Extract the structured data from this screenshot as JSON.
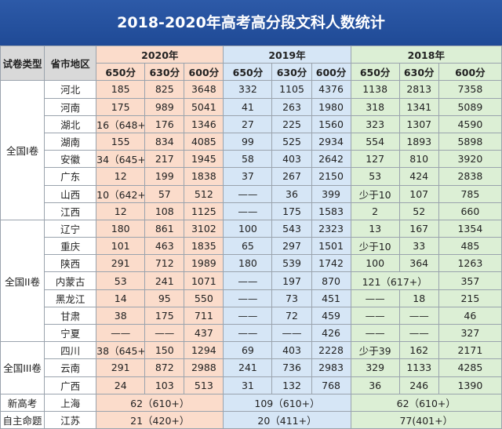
{
  "title": "2018-2020年高考高分段文科人数统计",
  "headers": {
    "paper_type": "试卷类型",
    "region": "省市地区",
    "years": [
      "2020年",
      "2019年",
      "2018年"
    ],
    "scores": [
      "650分",
      "630分",
      "600分"
    ]
  },
  "colors": {
    "title_bg": "#1f4a96",
    "y2020": "#fbdccb",
    "y2019": "#d6e6f6",
    "y2018": "#dcefd5"
  },
  "groups": [
    {
      "name": "全国I卷",
      "rows": [
        {
          "region": "河北",
          "y2020": [
            "185",
            "825",
            "3648"
          ],
          "y2019": [
            "332",
            "1105",
            "4376"
          ],
          "y2018": [
            "1138",
            "2813",
            "7358"
          ]
        },
        {
          "region": "河南",
          "y2020": [
            "175",
            "989",
            "5041"
          ],
          "y2019": [
            "41",
            "263",
            "1980"
          ],
          "y2018": [
            "318",
            "1341",
            "5089"
          ]
        },
        {
          "region": "湖北",
          "y2020": [
            "16（648+）",
            "176",
            "1346"
          ],
          "y2019": [
            "27",
            "225",
            "1560"
          ],
          "y2018": [
            "323",
            "1307",
            "4590"
          ]
        },
        {
          "region": "湖南",
          "y2020": [
            "155",
            "834",
            "4085"
          ],
          "y2019": [
            "99",
            "525",
            "2934"
          ],
          "y2018": [
            "554",
            "1893",
            "5898"
          ]
        },
        {
          "region": "安徽",
          "y2020": [
            "34（645+）",
            "217",
            "1945"
          ],
          "y2019": [
            "58",
            "403",
            "2642"
          ],
          "y2018": [
            "127",
            "810",
            "3920"
          ]
        },
        {
          "region": "广东",
          "y2020": [
            "12",
            "199",
            "1838"
          ],
          "y2019": [
            "37",
            "267",
            "2150"
          ],
          "y2018": [
            "53",
            "424",
            "2838"
          ]
        },
        {
          "region": "山西",
          "y2020": [
            "10（642+）",
            "57",
            "512"
          ],
          "y2019": [
            "——",
            "36",
            "399"
          ],
          "y2018": [
            "少于10",
            "107",
            "785"
          ]
        },
        {
          "region": "江西",
          "y2020": [
            "12",
            "108",
            "1125"
          ],
          "y2019": [
            "——",
            "175",
            "1583"
          ],
          "y2018": [
            "2",
            "52",
            "660"
          ]
        }
      ]
    },
    {
      "name": "全国II卷",
      "rows": [
        {
          "region": "辽宁",
          "y2020": [
            "180",
            "861",
            "3102"
          ],
          "y2019": [
            "100",
            "543",
            "2323"
          ],
          "y2018": [
            "13",
            "167",
            "1354"
          ]
        },
        {
          "region": "重庆",
          "y2020": [
            "101",
            "463",
            "1835"
          ],
          "y2019": [
            "65",
            "297",
            "1501"
          ],
          "y2018": [
            "少于10",
            "33",
            "485"
          ]
        },
        {
          "region": "陕西",
          "y2020": [
            "291",
            "712",
            "1989"
          ],
          "y2019": [
            "180",
            "539",
            "1742"
          ],
          "y2018": [
            "100",
            "364",
            "1263"
          ]
        },
        {
          "region": "内蒙古",
          "y2020": [
            "53",
            "241",
            "1071"
          ],
          "y2019": [
            "——",
            "197",
            "870"
          ],
          "y2018_merged": "121（617+）",
          "y2018": [
            "",
            "",
            "357"
          ]
        },
        {
          "region": "黑龙江",
          "y2020": [
            "14",
            "95",
            "550"
          ],
          "y2019": [
            "——",
            "73",
            "451"
          ],
          "y2018": [
            "——",
            "18",
            "215"
          ]
        },
        {
          "region": "甘肃",
          "y2020": [
            "38",
            "175",
            "711"
          ],
          "y2019": [
            "——",
            "72",
            "459"
          ],
          "y2018": [
            "——",
            "——",
            "46"
          ]
        },
        {
          "region": "宁夏",
          "y2020": [
            "——",
            "——",
            "437"
          ],
          "y2019": [
            "——",
            "——",
            "426"
          ],
          "y2018": [
            "——",
            "——",
            "327"
          ]
        }
      ]
    },
    {
      "name": "全国III卷",
      "rows": [
        {
          "region": "四川",
          "y2020": [
            "38（645+）",
            "150",
            "1294"
          ],
          "y2019": [
            "69",
            "403",
            "2228"
          ],
          "y2018": [
            "少于39",
            "162",
            "2171"
          ]
        },
        {
          "region": "云南",
          "y2020": [
            "291",
            "872",
            "2988"
          ],
          "y2019": [
            "241",
            "736",
            "2983"
          ],
          "y2018": [
            "329",
            "1133",
            "4285"
          ]
        },
        {
          "region": "广西",
          "y2020": [
            "24",
            "103",
            "513"
          ],
          "y2019": [
            "31",
            "132",
            "768"
          ],
          "y2018": [
            "36",
            "246",
            "1390"
          ]
        }
      ]
    }
  ],
  "special": [
    {
      "type": "新高考",
      "region": "上海",
      "y2020": "62（610+）",
      "y2019": "109（610+）",
      "y2018": "62（610+）"
    },
    {
      "type": "自主命题",
      "region": "江苏",
      "y2020": "21（420+）",
      "y2019": "20（411+）",
      "y2018": "77(401+）"
    }
  ]
}
